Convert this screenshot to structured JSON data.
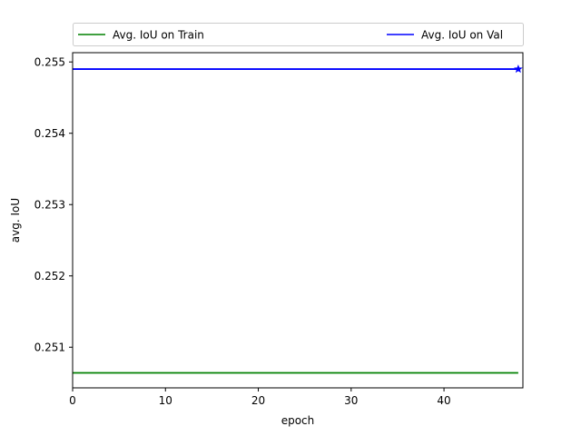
{
  "chart_data": {
    "type": "line",
    "xlabel": "epoch",
    "ylabel": "avg. IoU",
    "xlim": [
      0,
      48.5
    ],
    "ylim": [
      0.25043,
      0.25513
    ],
    "xticks": [
      0,
      10,
      20,
      30,
      40
    ],
    "xtick_labels": [
      "0",
      "10",
      "20",
      "30",
      "40"
    ],
    "yticks": [
      0.251,
      0.252,
      0.253,
      0.254,
      0.255
    ],
    "ytick_labels": [
      "0.251",
      "0.252",
      "0.253",
      "0.254",
      "0.255"
    ],
    "grid": false,
    "legend": "top, above plot, 2 columns",
    "series": [
      {
        "name": "Avg. IoU on Train",
        "color": "#008000",
        "x": [
          0,
          48
        ],
        "y": [
          0.25064,
          0.25064
        ]
      },
      {
        "name": "Avg. IoU on Val",
        "color": "#0000ff",
        "x": [
          0,
          48
        ],
        "y": [
          0.2549,
          0.2549
        ]
      }
    ],
    "best_marker": {
      "series": "Avg. IoU on Val",
      "x": 48,
      "y": 0.2549,
      "marker": "star"
    }
  }
}
